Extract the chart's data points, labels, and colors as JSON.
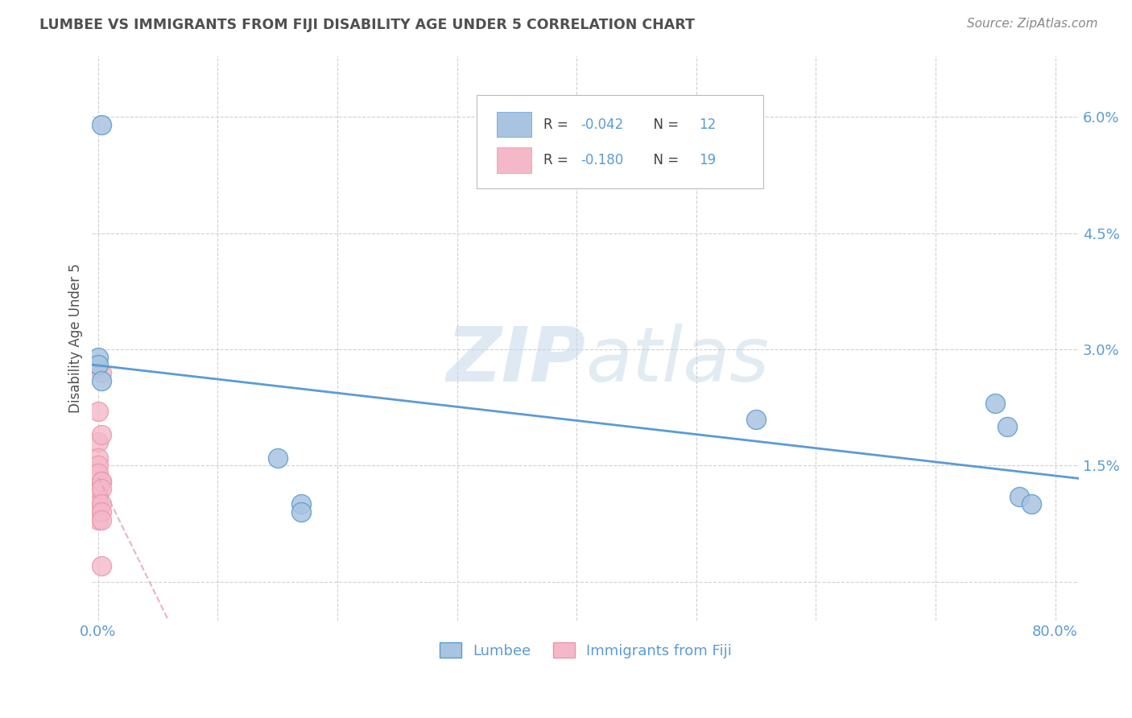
{
  "title": "LUMBEE VS IMMIGRANTS FROM FIJI DISABILITY AGE UNDER 5 CORRELATION CHART",
  "source": "Source: ZipAtlas.com",
  "ylabel": "Disability Age Under 5",
  "x_ticks": [
    0.0,
    0.1,
    0.2,
    0.3,
    0.4,
    0.5,
    0.6,
    0.7,
    0.8
  ],
  "x_tick_labels": [
    "0.0%",
    "",
    "",
    "",
    "",
    "",
    "",
    "",
    "80.0%"
  ],
  "y_ticks": [
    0.0,
    0.015,
    0.03,
    0.045,
    0.06
  ],
  "y_tick_labels": [
    "",
    "1.5%",
    "3.0%",
    "4.5%",
    "6.0%"
  ],
  "xlim": [
    -0.005,
    0.82
  ],
  "ylim": [
    -0.005,
    0.068
  ],
  "lumbee_x": [
    0.003,
    0.0,
    0.0,
    0.003,
    0.15,
    0.17,
    0.17,
    0.55,
    0.75,
    0.76,
    0.77,
    0.78
  ],
  "lumbee_y": [
    0.059,
    0.029,
    0.028,
    0.026,
    0.016,
    0.01,
    0.009,
    0.021,
    0.023,
    0.02,
    0.011,
    0.01
  ],
  "fiji_x": [
    0.0,
    0.0,
    0.0,
    0.0,
    0.0,
    0.0,
    0.0,
    0.0,
    0.0,
    0.0,
    0.003,
    0.003,
    0.003,
    0.003,
    0.003,
    0.003,
    0.003,
    0.003,
    0.003
  ],
  "fiji_y": [
    0.022,
    0.018,
    0.016,
    0.015,
    0.014,
    0.012,
    0.011,
    0.01,
    0.009,
    0.008,
    0.027,
    0.019,
    0.013,
    0.013,
    0.012,
    0.01,
    0.009,
    0.008,
    0.002
  ],
  "lumbee_color": "#a8c4e0",
  "fiji_color": "#f4b8c8",
  "lumbee_edge_color": "#5b9bd5",
  "fiji_edge_color": "#e896aa",
  "lumbee_line_color": "#5b9bd5",
  "fiji_line_color": "#e8a0b0",
  "lumbee_R": "-0.042",
  "lumbee_N": "12",
  "fiji_R": "-0.180",
  "fiji_N": "19",
  "legend_lumbee": "Lumbee",
  "legend_fiji": "Immigrants from Fiji",
  "watermark_zip": "ZIP",
  "watermark_atlas": "atlas",
  "background_color": "#ffffff",
  "grid_color": "#d0d0d0",
  "title_color": "#505050",
  "source_color": "#888888",
  "tick_color": "#5b9bd5"
}
